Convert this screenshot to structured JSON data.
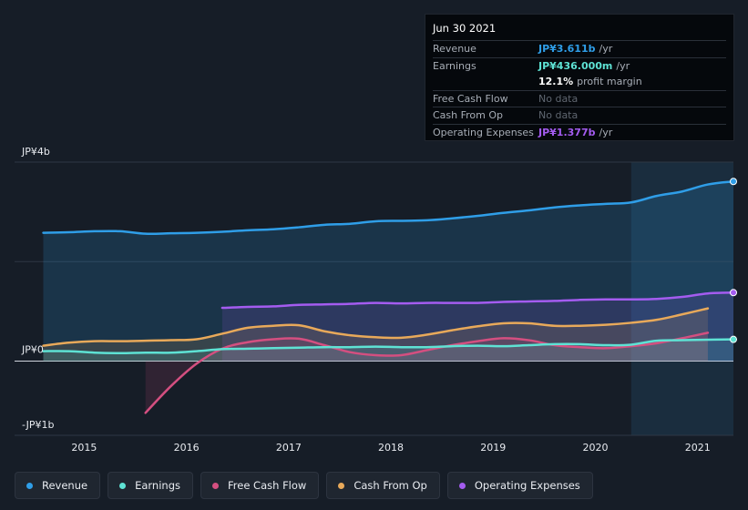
{
  "tooltip": {
    "date": "Jun 30 2021",
    "rows": [
      {
        "label": "Revenue",
        "value": "JP¥3.611b",
        "unit": "/yr",
        "color": "#2f9ee8"
      },
      {
        "label": "Earnings",
        "value": "JP¥436.000m",
        "unit": "/yr",
        "color": "#5ee2d4"
      },
      {
        "label": "",
        "value": "12.1%",
        "unit": "profit margin",
        "color": "#ffffff"
      },
      {
        "label": "Free Cash Flow",
        "value": "No data",
        "unit": "",
        "color": "#5f6670"
      },
      {
        "label": "Cash From Op",
        "value": "No data",
        "unit": "",
        "color": "#5f6670"
      },
      {
        "label": "Operating Expenses",
        "value": "JP¥1.377b",
        "unit": "/yr",
        "color": "#a45cf0"
      }
    ]
  },
  "legend": [
    {
      "label": "Revenue",
      "color": "#2f9ee8"
    },
    {
      "label": "Earnings",
      "color": "#5ee2d4"
    },
    {
      "label": "Free Cash Flow",
      "color": "#d44f80"
    },
    {
      "label": "Cash From Op",
      "color": "#e8a95a"
    },
    {
      "label": "Operating Expenses",
      "color": "#a45cf0"
    }
  ],
  "chart_data": {
    "type": "line",
    "title": "",
    "unit": "JP¥ billions",
    "ylim": [
      -1.0,
      4.0
    ],
    "y_tick_labels": [
      {
        "value": 4,
        "label": "JP¥4b"
      },
      {
        "value": 0,
        "label": "JP¥0"
      },
      {
        "value": -1,
        "label": "-JP¥1b"
      }
    ],
    "xlim": [
      2014.6,
      2021.5
    ],
    "x_ticks": [
      2015,
      2016,
      2017,
      2018,
      2019,
      2020,
      2021
    ],
    "x_tick_labels": [
      "2015",
      "2016",
      "2017",
      "2018",
      "2019",
      "2020",
      "2021"
    ],
    "forecast_start": 2020.5,
    "series": [
      {
        "name": "Revenue",
        "color": "#2f9ee8",
        "fill": true,
        "end_marker": true,
        "x": [
          2014.75,
          2015.0,
          2015.25,
          2015.5,
          2015.75,
          2016.0,
          2016.25,
          2016.5,
          2016.75,
          2017.0,
          2017.25,
          2017.5,
          2017.75,
          2018.0,
          2018.25,
          2018.5,
          2018.75,
          2019.0,
          2019.25,
          2019.5,
          2019.75,
          2020.0,
          2020.25,
          2020.5,
          2020.75,
          2021.0,
          2021.25,
          2021.5
        ],
        "values": [
          2.58,
          2.59,
          2.61,
          2.61,
          2.56,
          2.57,
          2.58,
          2.6,
          2.63,
          2.65,
          2.69,
          2.74,
          2.76,
          2.81,
          2.82,
          2.83,
          2.87,
          2.92,
          2.98,
          3.03,
          3.09,
          3.13,
          3.16,
          3.19,
          3.32,
          3.41,
          3.55,
          3.611
        ]
      },
      {
        "name": "Earnings",
        "color": "#5ee2d4",
        "fill": true,
        "end_marker": true,
        "x": [
          2014.75,
          2015.0,
          2015.25,
          2015.5,
          2015.75,
          2016.0,
          2016.25,
          2016.5,
          2016.75,
          2017.0,
          2017.25,
          2017.5,
          2017.75,
          2018.0,
          2018.25,
          2018.5,
          2018.75,
          2019.0,
          2019.25,
          2019.5,
          2019.75,
          2020.0,
          2020.25,
          2020.5,
          2020.75,
          2021.0,
          2021.25,
          2021.5
        ],
        "values": [
          0.2,
          0.2,
          0.17,
          0.16,
          0.17,
          0.17,
          0.2,
          0.24,
          0.25,
          0.26,
          0.27,
          0.28,
          0.28,
          0.29,
          0.28,
          0.28,
          0.3,
          0.31,
          0.3,
          0.32,
          0.34,
          0.34,
          0.32,
          0.33,
          0.41,
          0.42,
          0.43,
          0.436
        ]
      },
      {
        "name": "Free Cash Flow",
        "color": "#d44f80",
        "fill": true,
        "end_marker": false,
        "x": [
          2015.75,
          2016.0,
          2016.25,
          2016.5,
          2016.75,
          2017.0,
          2017.25,
          2017.5,
          2017.75,
          2018.0,
          2018.25,
          2018.5,
          2018.75,
          2019.0,
          2019.25,
          2019.5,
          2019.75,
          2020.0,
          2020.25,
          2020.5,
          2020.75,
          2021.0,
          2021.25
        ],
        "values": [
          -1.04,
          -0.5,
          -0.05,
          0.25,
          0.38,
          0.44,
          0.45,
          0.32,
          0.18,
          0.12,
          0.12,
          0.22,
          0.32,
          0.4,
          0.46,
          0.42,
          0.32,
          0.28,
          0.26,
          0.3,
          0.36,
          0.46,
          0.57
        ]
      },
      {
        "name": "Cash From Op",
        "color": "#e8a95a",
        "fill": true,
        "end_marker": false,
        "x": [
          2014.75,
          2015.0,
          2015.25,
          2015.5,
          2015.75,
          2016.0,
          2016.25,
          2016.5,
          2016.75,
          2017.0,
          2017.25,
          2017.5,
          2017.75,
          2018.0,
          2018.25,
          2018.5,
          2018.75,
          2019.0,
          2019.25,
          2019.5,
          2019.75,
          2020.0,
          2020.25,
          2020.5,
          2020.75,
          2021.0,
          2021.25
        ],
        "values": [
          0.31,
          0.37,
          0.4,
          0.4,
          0.41,
          0.42,
          0.44,
          0.55,
          0.67,
          0.71,
          0.72,
          0.6,
          0.52,
          0.48,
          0.47,
          0.53,
          0.62,
          0.7,
          0.76,
          0.76,
          0.71,
          0.71,
          0.73,
          0.77,
          0.83,
          0.94,
          1.06
        ]
      },
      {
        "name": "Operating Expenses",
        "color": "#a45cf0",
        "fill": true,
        "end_marker": true,
        "x": [
          2016.5,
          2016.75,
          2017.0,
          2017.25,
          2017.5,
          2017.75,
          2018.0,
          2018.25,
          2018.5,
          2018.75,
          2019.0,
          2019.25,
          2019.5,
          2019.75,
          2020.0,
          2020.25,
          2020.5,
          2020.75,
          2021.0,
          2021.25,
          2021.5
        ],
        "values": [
          1.07,
          1.09,
          1.1,
          1.13,
          1.14,
          1.15,
          1.17,
          1.16,
          1.17,
          1.17,
          1.17,
          1.19,
          1.2,
          1.21,
          1.23,
          1.24,
          1.24,
          1.25,
          1.29,
          1.36,
          1.377
        ]
      }
    ]
  }
}
